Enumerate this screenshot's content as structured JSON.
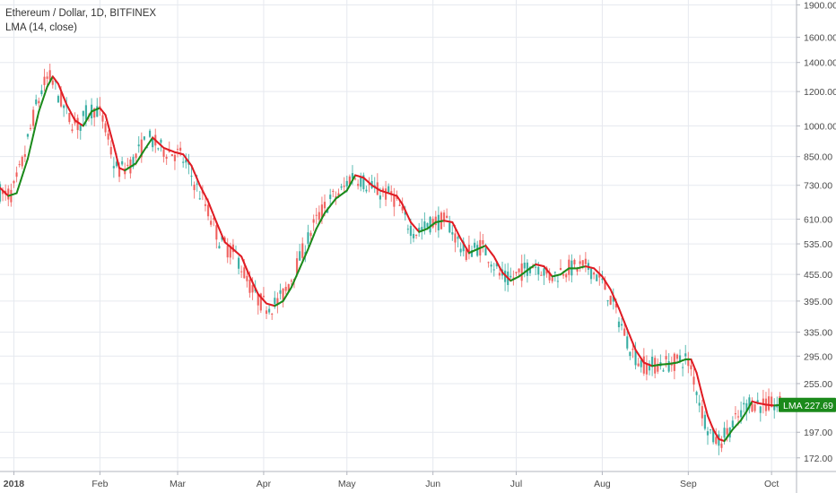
{
  "legend": {
    "symbol": "Ethereum / Dollar, 1D, BITFINEX",
    "indicator": "LMA (14, close)"
  },
  "badge": {
    "name": "LMA",
    "value": "227.69",
    "color": "#1b8a1b"
  },
  "colors": {
    "up": "#1b8a1b",
    "down": "#e01c24",
    "grid": "#e6e9ef",
    "axis": "#b2b5be"
  },
  "chart_data": {
    "type": "line",
    "title": "",
    "price_scale": "log",
    "ylim": [
      160,
      1950
    ],
    "y_ticks": [
      1900,
      1600,
      1400,
      1200,
      1000,
      850,
      730,
      610,
      535,
      455,
      395,
      335,
      295,
      255,
      197,
      172
    ],
    "y_tick_labels": [
      "1900.00",
      "1600.00",
      "1400.00",
      "1200.00",
      "1000.00",
      "850.00",
      "730.00",
      "610.00",
      "535.00",
      "455.00",
      "395.00",
      "335.00",
      "295.00",
      "255.00",
      "197.00",
      "172.00"
    ],
    "x_ticks": [
      {
        "label": "2018",
        "date": "2018-01-01"
      },
      {
        "label": "Feb",
        "date": "2018-02-01"
      },
      {
        "label": "Mar",
        "date": "2018-03-01"
      },
      {
        "label": "Apr",
        "date": "2018-04-01"
      },
      {
        "label": "May",
        "date": "2018-05-01"
      },
      {
        "label": "Jun",
        "date": "2018-06-01"
      },
      {
        "label": "Jul",
        "date": "2018-07-01"
      },
      {
        "label": "Aug",
        "date": "2018-08-01"
      },
      {
        "label": "Sep",
        "date": "2018-09-01"
      },
      {
        "label": "Oct",
        "date": "2018-10-01"
      }
    ],
    "xlim": [
      "2017-12-27",
      "2018-10-10"
    ],
    "grid": true,
    "series": [
      {
        "name": "LMA",
        "points": [
          [
            "2017-12-27",
            720
          ],
          [
            "2017-12-30",
            690
          ],
          [
            "2018-01-02",
            700
          ],
          [
            "2018-01-06",
            840
          ],
          [
            "2018-01-10",
            1080
          ],
          [
            "2018-01-13",
            1230
          ],
          [
            "2018-01-15",
            1300
          ],
          [
            "2018-01-17",
            1250
          ],
          [
            "2018-01-20",
            1120
          ],
          [
            "2018-01-23",
            1030
          ],
          [
            "2018-01-26",
            1000
          ],
          [
            "2018-01-29",
            1080
          ],
          [
            "2018-02-01",
            1100
          ],
          [
            "2018-02-03",
            1060
          ],
          [
            "2018-02-06",
            900
          ],
          [
            "2018-02-08",
            800
          ],
          [
            "2018-02-10",
            790
          ],
          [
            "2018-02-14",
            820
          ],
          [
            "2018-02-17",
            880
          ],
          [
            "2018-02-20",
            940
          ],
          [
            "2018-02-24",
            890
          ],
          [
            "2018-02-28",
            870
          ],
          [
            "2018-03-03",
            860
          ],
          [
            "2018-03-06",
            810
          ],
          [
            "2018-03-09",
            730
          ],
          [
            "2018-03-12",
            670
          ],
          [
            "2018-03-15",
            600
          ],
          [
            "2018-03-18",
            540
          ],
          [
            "2018-03-21",
            520
          ],
          [
            "2018-03-24",
            500
          ],
          [
            "2018-03-27",
            450
          ],
          [
            "2018-03-30",
            410
          ],
          [
            "2018-04-02",
            390
          ],
          [
            "2018-04-05",
            385
          ],
          [
            "2018-04-08",
            395
          ],
          [
            "2018-04-11",
            425
          ],
          [
            "2018-04-14",
            470
          ],
          [
            "2018-04-17",
            520
          ],
          [
            "2018-04-20",
            580
          ],
          [
            "2018-04-23",
            630
          ],
          [
            "2018-04-27",
            680
          ],
          [
            "2018-05-01",
            710
          ],
          [
            "2018-05-04",
            770
          ],
          [
            "2018-05-07",
            760
          ],
          [
            "2018-05-10",
            730
          ],
          [
            "2018-05-13",
            710
          ],
          [
            "2018-05-16",
            700
          ],
          [
            "2018-05-19",
            690
          ],
          [
            "2018-05-21",
            660
          ],
          [
            "2018-05-24",
            600
          ],
          [
            "2018-05-27",
            570
          ],
          [
            "2018-05-30",
            580
          ],
          [
            "2018-06-02",
            600
          ],
          [
            "2018-06-05",
            605
          ],
          [
            "2018-06-08",
            600
          ],
          [
            "2018-06-11",
            550
          ],
          [
            "2018-06-14",
            510
          ],
          [
            "2018-06-17",
            520
          ],
          [
            "2018-06-20",
            530
          ],
          [
            "2018-06-23",
            500
          ],
          [
            "2018-06-26",
            460
          ],
          [
            "2018-06-29",
            440
          ],
          [
            "2018-07-02",
            450
          ],
          [
            "2018-07-05",
            465
          ],
          [
            "2018-07-08",
            480
          ],
          [
            "2018-07-11",
            475
          ],
          [
            "2018-07-14",
            450
          ],
          [
            "2018-07-17",
            455
          ],
          [
            "2018-07-20",
            470
          ],
          [
            "2018-07-23",
            470
          ],
          [
            "2018-07-26",
            475
          ],
          [
            "2018-07-29",
            470
          ],
          [
            "2018-08-01",
            450
          ],
          [
            "2018-08-04",
            420
          ],
          [
            "2018-08-07",
            380
          ],
          [
            "2018-08-10",
            340
          ],
          [
            "2018-08-13",
            305
          ],
          [
            "2018-08-16",
            285
          ],
          [
            "2018-08-19",
            280
          ],
          [
            "2018-08-22",
            282
          ],
          [
            "2018-08-25",
            283
          ],
          [
            "2018-08-28",
            285
          ],
          [
            "2018-08-31",
            290
          ],
          [
            "2018-09-02",
            290
          ],
          [
            "2018-09-04",
            270
          ],
          [
            "2018-09-06",
            240
          ],
          [
            "2018-09-08",
            215
          ],
          [
            "2018-09-10",
            200
          ],
          [
            "2018-09-12",
            190
          ],
          [
            "2018-09-14",
            188
          ],
          [
            "2018-09-17",
            200
          ],
          [
            "2018-09-20",
            210
          ],
          [
            "2018-09-22",
            220
          ],
          [
            "2018-09-24",
            232
          ],
          [
            "2018-09-26",
            230
          ],
          [
            "2018-09-29",
            228
          ],
          [
            "2018-10-02",
            227
          ],
          [
            "2018-10-04",
            227.69
          ]
        ]
      }
    ]
  }
}
